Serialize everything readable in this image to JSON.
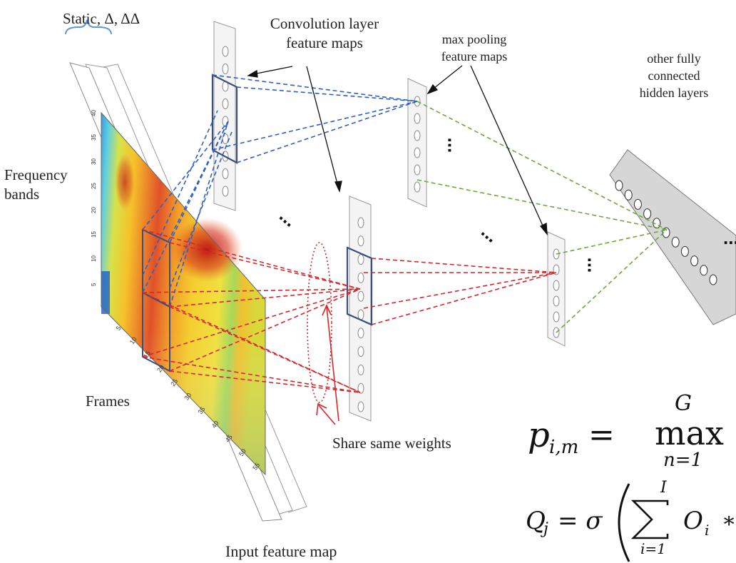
{
  "labels": {
    "static_delta": "Static, Δ, ΔΔ",
    "conv_layer_line1": "Convolution layer",
    "conv_layer_line2": "feature maps",
    "max_pool_line1": "max pooling",
    "max_pool_line2": "feature maps",
    "fully_line1": "other fully",
    "fully_line2": "connected",
    "fully_line3": "hidden layers",
    "freq_line1": "Frequency",
    "freq_line2": "bands",
    "frames": "Frames",
    "share_weights": "Share same weights",
    "input_map": "Input feature map"
  },
  "ellipsis": "...",
  "axis_ticks_frames": [
    "5",
    "10",
    "15",
    "20",
    "25",
    "30",
    "35",
    "40",
    "45",
    "50",
    "55"
  ],
  "axis_ticks_freq": [
    "40",
    "35",
    "30",
    "25",
    "20",
    "15",
    "10",
    "5"
  ],
  "equations": {
    "p_lhs": "p",
    "p_sub": "i,m",
    "p_eq": "=",
    "p_max": "max",
    "p_sup": "G",
    "p_lim": "n=1",
    "q_lhs": "Q",
    "q_sub": "j",
    "q_eq": "= σ",
    "q_sum_top": "I",
    "q_sum_bot": "i=1",
    "q_term": "O",
    "q_term_sub": "i",
    "q_tail": "∗"
  },
  "colors": {
    "blue_lines": "#2f5fc4",
    "red_lines": "#d8262a",
    "green_lines": "#6aaa3c",
    "box_outline": "#3a4f7a",
    "panel_fill": "#f4f4f4",
    "panel_stroke": "#9a9a9a"
  }
}
